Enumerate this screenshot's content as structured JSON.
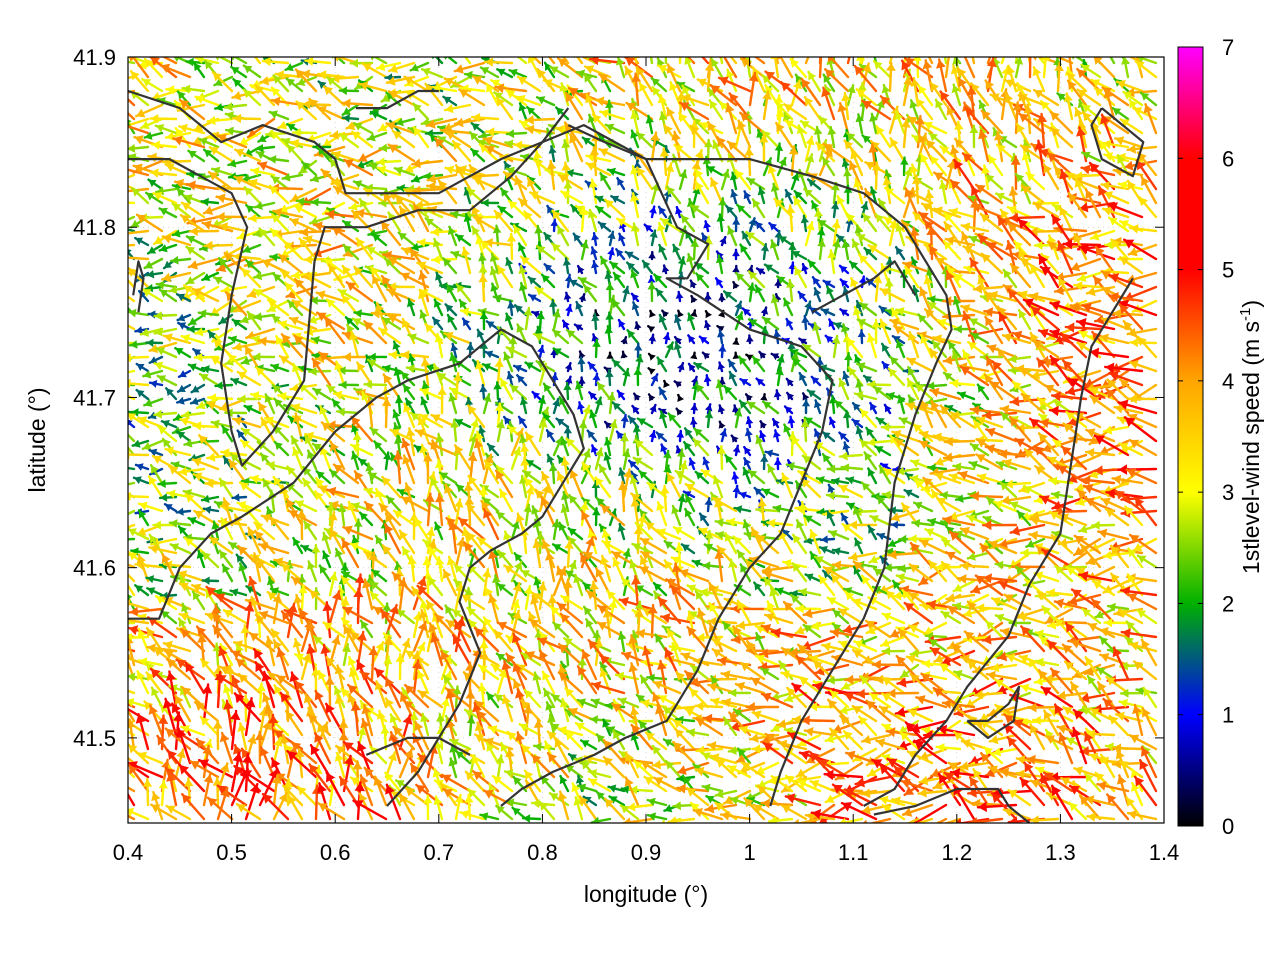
{
  "chart_data": {
    "type": "vector-field",
    "xlabel": "longitude (°)",
    "ylabel": "latitude (°)",
    "xlim": [
      0.4,
      1.4
    ],
    "ylim": [
      41.45,
      41.9
    ],
    "x_ticks": [
      "0.4",
      "0.5",
      "0.6",
      "0.7",
      "0.8",
      "0.9",
      "1",
      "1.1",
      "1.2",
      "1.3",
      "1.4"
    ],
    "y_ticks": [
      "41.5",
      "41.6",
      "41.7",
      "41.8",
      "41.9"
    ],
    "grid": true,
    "colorbar": {
      "label": "1stlevel-wind speed (m s-1)",
      "label_main": "1stlevel-wind speed (m s",
      "label_sup": "-1",
      "label_end": ")",
      "range": [
        0,
        7
      ],
      "ticks": [
        "0",
        "1",
        "2",
        "3",
        "4",
        "5",
        "6",
        "7"
      ],
      "colors": [
        "#000000",
        "#0000ff",
        "#00b000",
        "#ffff00",
        "#ffa500",
        "#ff0000",
        "#ff00ff"
      ],
      "placement": "right"
    },
    "contours": [
      [
        [
          0.4,
          41.88
        ],
        [
          0.45,
          41.87
        ],
        [
          0.49,
          41.85
        ],
        [
          0.53,
          41.86
        ],
        [
          0.58,
          41.85
        ],
        [
          0.6,
          41.84
        ],
        [
          0.61,
          41.82
        ],
        [
          0.65,
          41.82
        ],
        [
          0.7,
          41.82
        ],
        [
          0.76,
          41.84
        ],
        [
          0.8,
          41.85
        ],
        [
          0.84,
          41.86
        ],
        [
          0.87,
          41.85
        ],
        [
          0.9,
          41.84
        ],
        [
          0.95,
          41.84
        ],
        [
          1.0,
          41.84
        ],
        [
          1.06,
          41.83
        ],
        [
          1.11,
          41.82
        ],
        [
          1.15,
          41.8
        ],
        [
          1.17,
          41.78
        ],
        [
          1.19,
          41.76
        ],
        [
          1.195,
          41.74
        ],
        [
          1.18,
          41.72
        ],
        [
          1.16,
          41.69
        ],
        [
          1.14,
          41.65
        ],
        [
          1.13,
          41.6
        ],
        [
          1.11,
          41.57
        ],
        [
          1.08,
          41.54
        ],
        [
          1.05,
          41.51
        ],
        [
          1.03,
          41.48
        ],
        [
          1.02,
          41.46
        ]
      ],
      [
        [
          0.4,
          41.84
        ],
        [
          0.44,
          41.84
        ],
        [
          0.47,
          41.83
        ],
        [
          0.5,
          41.82
        ],
        [
          0.515,
          41.8
        ],
        [
          0.5,
          41.76
        ],
        [
          0.49,
          41.72
        ],
        [
          0.5,
          41.68
        ],
        [
          0.51,
          41.66
        ],
        [
          0.54,
          41.68
        ],
        [
          0.57,
          41.71
        ],
        [
          0.58,
          41.78
        ],
        [
          0.59,
          41.8
        ],
        [
          0.63,
          41.8
        ],
        [
          0.68,
          41.81
        ],
        [
          0.73,
          41.81
        ],
        [
          0.77,
          41.83
        ],
        [
          0.8,
          41.85
        ],
        [
          0.825,
          41.87
        ]
      ],
      [
        [
          0.4,
          41.57
        ],
        [
          0.43,
          41.57
        ],
        [
          0.45,
          41.6
        ],
        [
          0.48,
          41.62
        ],
        [
          0.51,
          41.63
        ],
        [
          0.56,
          41.65
        ],
        [
          0.6,
          41.68
        ],
        [
          0.64,
          41.7
        ],
        [
          0.67,
          41.71
        ],
        [
          0.72,
          41.72
        ],
        [
          0.76,
          41.74
        ],
        [
          0.79,
          41.73
        ],
        [
          0.8,
          41.72
        ],
        [
          0.82,
          41.7
        ],
        [
          0.83,
          41.69
        ],
        [
          0.84,
          41.67
        ],
        [
          0.82,
          41.65
        ],
        [
          0.8,
          41.63
        ],
        [
          0.78,
          41.62
        ],
        [
          0.75,
          41.61
        ],
        [
          0.73,
          41.6
        ],
        [
          0.72,
          41.58
        ],
        [
          0.74,
          41.55
        ],
        [
          0.72,
          41.52
        ],
        [
          0.7,
          41.5
        ],
        [
          0.68,
          41.48
        ],
        [
          0.65,
          41.46
        ]
      ],
      [
        [
          0.825,
          41.86
        ],
        [
          0.86,
          41.85
        ],
        [
          0.9,
          41.84
        ],
        [
          0.93,
          41.8
        ],
        [
          0.96,
          41.79
        ],
        [
          0.94,
          41.77
        ],
        [
          0.92,
          41.77
        ],
        [
          0.95,
          41.76
        ],
        [
          1.0,
          41.74
        ],
        [
          1.05,
          41.73
        ],
        [
          1.08,
          41.71
        ],
        [
          1.07,
          41.68
        ],
        [
          1.05,
          41.65
        ],
        [
          1.03,
          41.62
        ],
        [
          1.0,
          41.6
        ],
        [
          0.97,
          41.57
        ],
        [
          0.95,
          41.54
        ],
        [
          0.92,
          41.51
        ],
        [
          0.88,
          41.5
        ],
        [
          0.85,
          41.49
        ],
        [
          0.81,
          41.48
        ],
        [
          0.78,
          41.47
        ],
        [
          0.76,
          41.46
        ]
      ],
      [
        [
          1.06,
          41.75
        ],
        [
          1.09,
          41.76
        ],
        [
          1.12,
          41.77
        ],
        [
          1.14,
          41.78
        ],
        [
          1.16,
          41.76
        ]
      ],
      [
        [
          1.34,
          41.87
        ],
        [
          1.36,
          41.86
        ],
        [
          1.38,
          41.85
        ],
        [
          1.37,
          41.83
        ],
        [
          1.34,
          41.84
        ],
        [
          1.33,
          41.86
        ],
        [
          1.34,
          41.87
        ]
      ],
      [
        [
          1.37,
          41.77
        ],
        [
          1.35,
          41.75
        ],
        [
          1.33,
          41.73
        ],
        [
          1.32,
          41.7
        ],
        [
          1.31,
          41.66
        ],
        [
          1.3,
          41.62
        ],
        [
          1.27,
          41.59
        ],
        [
          1.25,
          41.56
        ],
        [
          1.21,
          41.53
        ],
        [
          1.19,
          41.51
        ],
        [
          1.16,
          41.49
        ],
        [
          1.14,
          41.47
        ],
        [
          1.11,
          41.46
        ]
      ],
      [
        [
          1.21,
          41.51
        ],
        [
          1.23,
          41.51
        ],
        [
          1.25,
          41.52
        ],
        [
          1.26,
          41.53
        ],
        [
          1.255,
          41.51
        ],
        [
          1.23,
          41.5
        ],
        [
          1.21,
          41.51
        ]
      ],
      [
        [
          1.12,
          41.455
        ],
        [
          1.16,
          41.46
        ],
        [
          1.2,
          41.47
        ],
        [
          1.24,
          41.47
        ],
        [
          1.25,
          41.46
        ],
        [
          1.27,
          41.45
        ]
      ],
      [
        [
          0.41,
          41.75
        ],
        [
          0.415,
          41.77
        ],
        [
          0.41,
          41.78
        ],
        [
          0.405,
          41.76
        ]
      ],
      [
        [
          0.62,
          41.87
        ],
        [
          0.65,
          41.87
        ],
        [
          0.68,
          41.88
        ],
        [
          0.7,
          41.88
        ]
      ],
      [
        [
          0.63,
          41.49
        ],
        [
          0.67,
          41.5
        ],
        [
          0.7,
          41.5
        ],
        [
          0.73,
          41.49
        ]
      ]
    ]
  }
}
